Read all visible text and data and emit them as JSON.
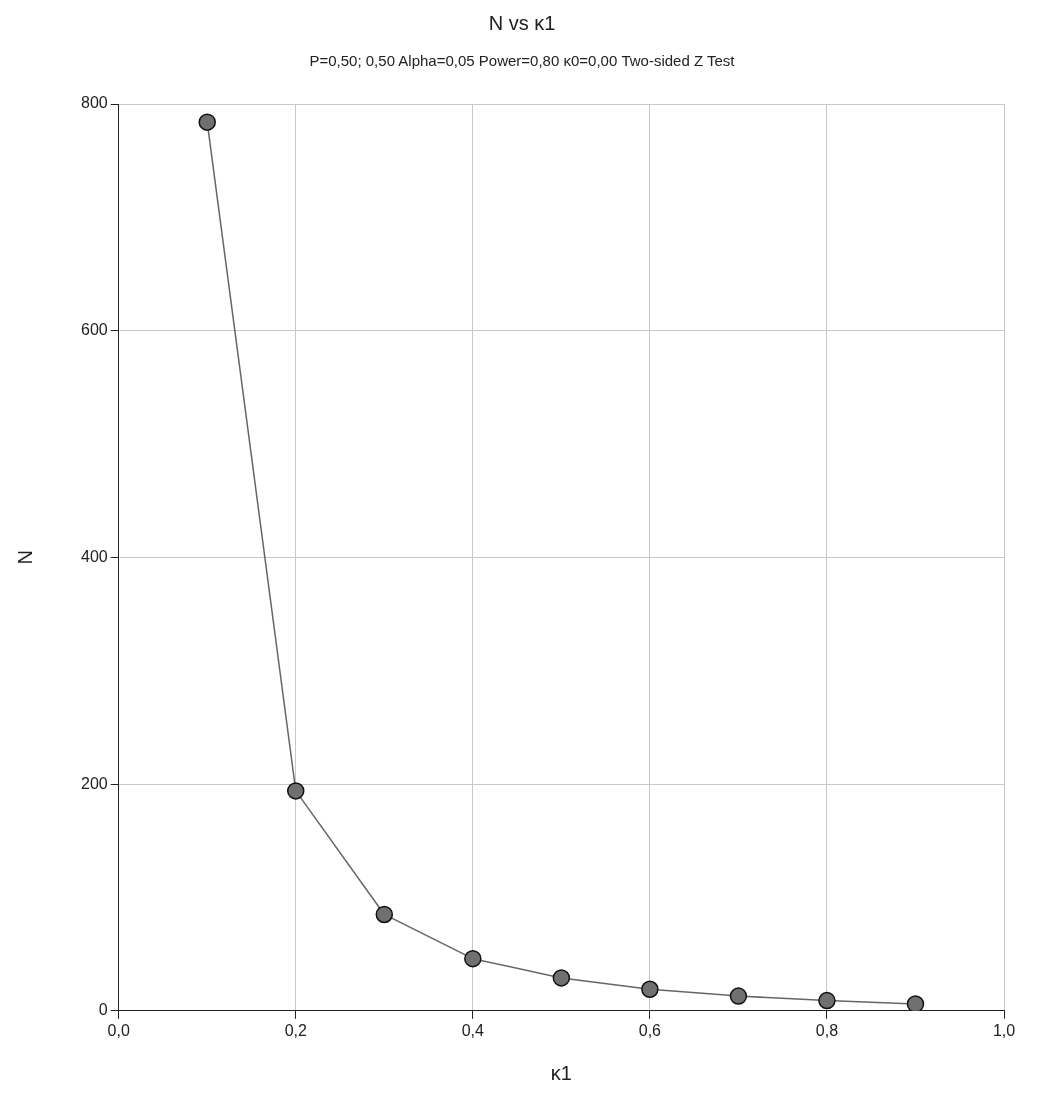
{
  "chart_data": {
    "type": "line",
    "title": "N vs κ1",
    "subtitle": "P=0,50; 0,50 Alpha=0,05 Power=0,80 κ0=0,00 Two-sided Z Test",
    "xlabel": "κ1",
    "ylabel": "N",
    "x": [
      0.1,
      0.2,
      0.3,
      0.4,
      0.5,
      0.6,
      0.7,
      0.8,
      0.9
    ],
    "series": [
      {
        "color": "#666666",
        "values": [
          784,
          194,
          85,
          46,
          29,
          19,
          13,
          9,
          6
        ]
      }
    ],
    "xlim": [
      0,
      1
    ],
    "xticks": [
      {
        "value": 0,
        "label": "0,0"
      },
      {
        "value": 0.2,
        "label": "0,2"
      },
      {
        "value": 0.4,
        "label": "0,4"
      },
      {
        "value": 0.6,
        "label": "0,6"
      },
      {
        "value": 0.8,
        "label": "0,8"
      },
      {
        "value": 1,
        "label": "1,0"
      }
    ],
    "ylim": [
      0,
      800
    ],
    "yticks": [
      0,
      200,
      400,
      600,
      800
    ],
    "grid": true,
    "marker": "circle",
    "line_style": "solid",
    "legend": false
  }
}
